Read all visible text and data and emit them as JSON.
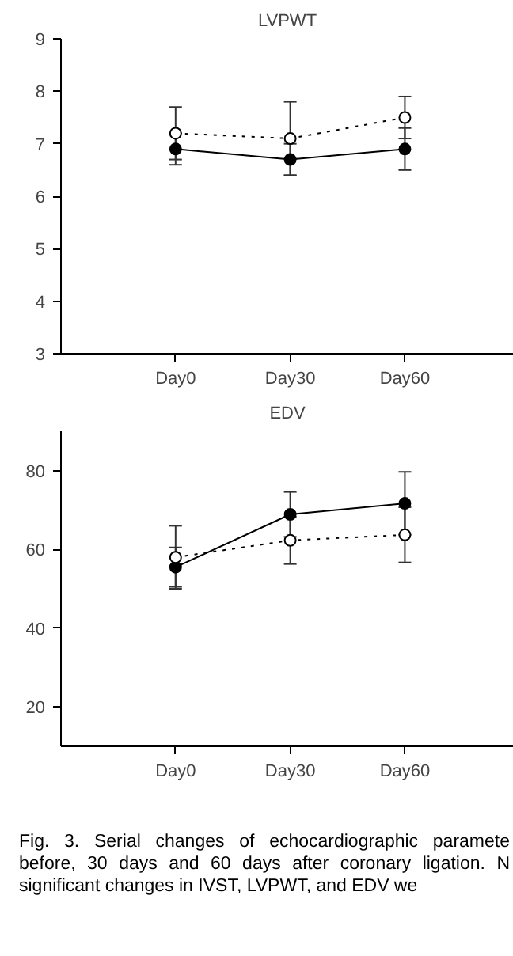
{
  "chart_data": [
    {
      "type": "line",
      "title": "LVPWT",
      "categories": [
        "Day0",
        "Day30",
        "Day60"
      ],
      "ylim": [
        3,
        9
      ],
      "yticks": [
        3,
        4,
        5,
        6,
        7,
        8,
        9
      ],
      "grid": false,
      "marker": "circle",
      "series": [
        {
          "color": "#000000",
          "values": [
            6.9,
            6.7,
            6.9
          ],
          "errors": [
            0.3,
            0.3,
            0.4
          ],
          "line_style": "solid"
        },
        {
          "color": "#ffffff",
          "values": [
            7.2,
            7.1,
            7.5
          ],
          "errors": [
            0.5,
            0.7,
            0.4
          ],
          "line_style": "dotted"
        }
      ]
    },
    {
      "type": "line",
      "title": "EDV",
      "categories": [
        "Day0",
        "Day30",
        "Day60"
      ],
      "ylim": [
        10,
        90
      ],
      "yticks": [
        20,
        40,
        60,
        80
      ],
      "grid": false,
      "marker": "circle",
      "series": [
        {
          "color": "#000000",
          "values": [
            55.5,
            68.9,
            71.7
          ],
          "errors": [
            5,
            5.7,
            8
          ],
          "line_style": "solid"
        },
        {
          "color": "#ffffff",
          "values": [
            58,
            62.3,
            63.7
          ],
          "errors": [
            8,
            6,
            7
          ],
          "line_style": "dotted"
        }
      ],
      "annotations": [
        "Fig. 3. Serial changes of echocardiographic paramete before, 30 days and 60 days after coronary ligation. N significant changes in IVST, LVPWT, and EDV we"
      ]
    }
  ]
}
